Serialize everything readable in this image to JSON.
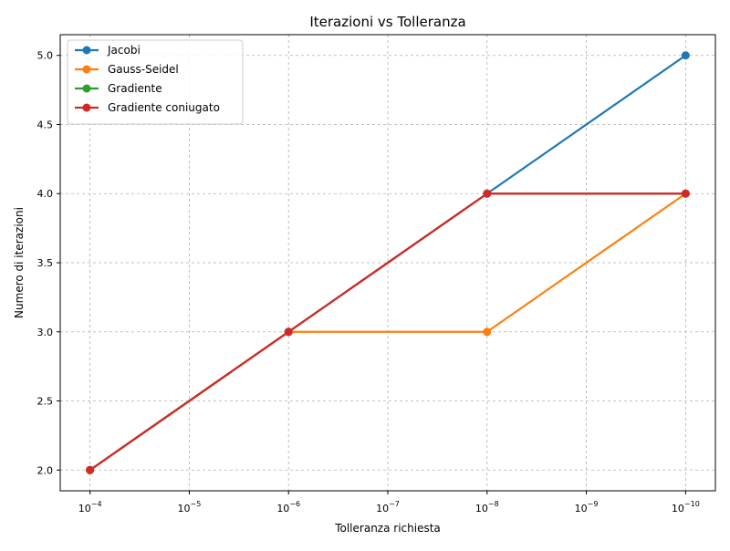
{
  "chart_data": {
    "type": "line",
    "title": "Iterazioni vs Tolleranza",
    "xlabel": "Tolleranza richiesta",
    "ylabel": "Numero di iterazioni",
    "x_scale": "log",
    "x_inverted": true,
    "x": [
      0.0001,
      1e-06,
      1e-08,
      1e-10
    ],
    "x_ticks": [
      {
        "base": "10",
        "exp": "−4",
        "value": 0.0001
      },
      {
        "base": "10",
        "exp": "−5",
        "value": 1e-05
      },
      {
        "base": "10",
        "exp": "−6",
        "value": 1e-06
      },
      {
        "base": "10",
        "exp": "−7",
        "value": 1e-07
      },
      {
        "base": "10",
        "exp": "−8",
        "value": 1e-08
      },
      {
        "base": "10",
        "exp": "−9",
        "value": 1e-09
      },
      {
        "base": "10",
        "exp": "−10",
        "value": 1e-10
      }
    ],
    "y_ticks": [
      "2.0",
      "2.5",
      "3.0",
      "3.5",
      "4.0",
      "4.5",
      "5.0"
    ],
    "ylim": [
      1.85,
      5.15
    ],
    "grid": true,
    "legend_position": "top-left",
    "series": [
      {
        "name": "Jacobi",
        "color": "#1f77b4",
        "values": [
          2,
          3,
          4,
          5
        ]
      },
      {
        "name": "Gauss-Seidel",
        "color": "#ff7f0e",
        "values": [
          2,
          3,
          3,
          4
        ]
      },
      {
        "name": "Gradiente",
        "color": "#2ca02c",
        "values": [
          2,
          3,
          4,
          4
        ]
      },
      {
        "name": "Gradiente coniugato",
        "color": "#d62728",
        "values": [
          2,
          3,
          4,
          4
        ]
      }
    ]
  }
}
